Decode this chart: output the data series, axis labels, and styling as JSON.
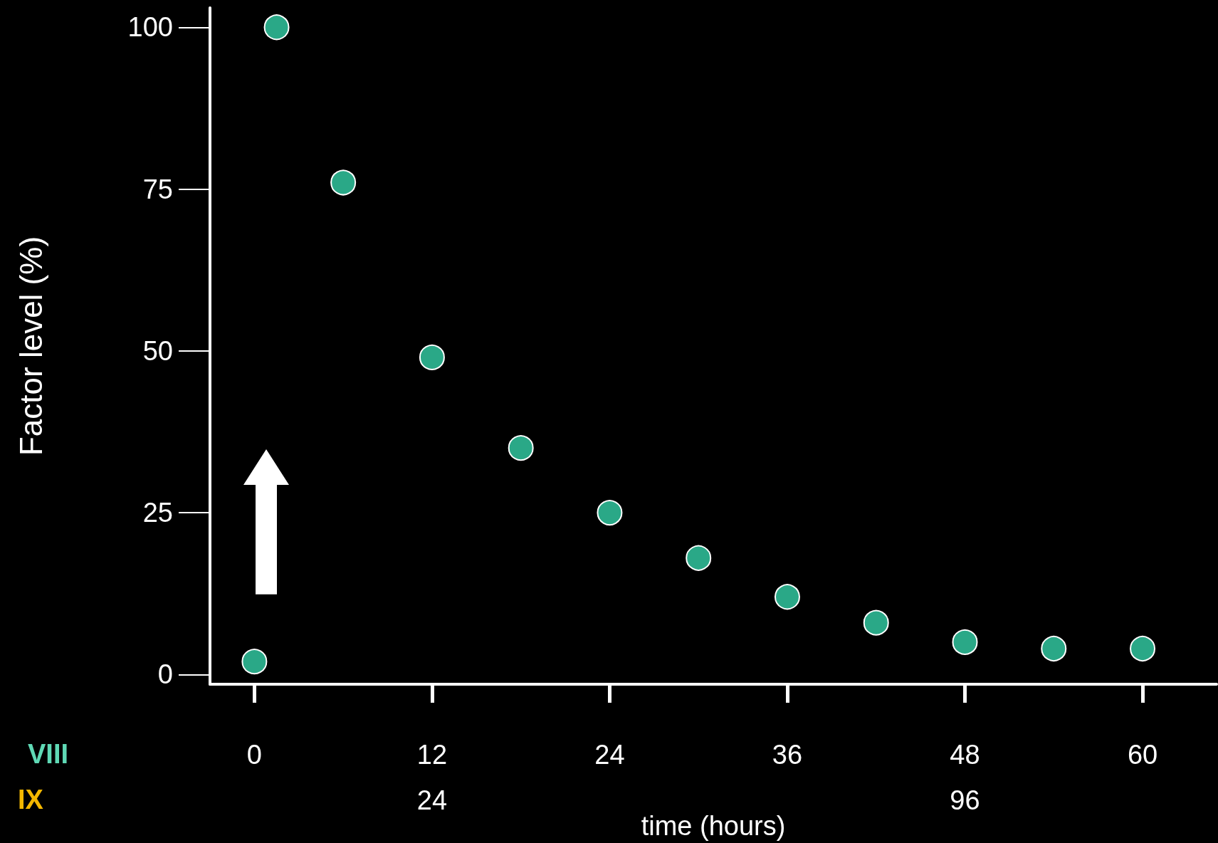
{
  "chart_data": {
    "type": "scatter",
    "xlabel": "time (hours)",
    "ylabel": "Factor level (%)",
    "x": [
      0,
      1.5,
      6,
      12,
      18,
      24,
      30,
      36,
      42,
      48,
      54,
      60
    ],
    "series": [
      {
        "color": "#2aa887",
        "values": [
          2,
          100,
          76,
          49,
          35,
          25,
          18,
          12,
          8,
          5,
          4,
          4
        ]
      }
    ],
    "xlim": [
      -3,
      65
    ],
    "xticks": [
      0,
      12,
      24,
      36,
      48,
      60
    ],
    "x2lim": [
      -6,
      130
    ],
    "x2ticks": [
      24,
      96
    ],
    "ylim": [
      -1.5,
      103
    ],
    "yticks": [
      0,
      25,
      50,
      75,
      100
    ],
    "annotations": [
      "VIII",
      "IX"
    ],
    "marker": "circle",
    "grid": false
  }
}
